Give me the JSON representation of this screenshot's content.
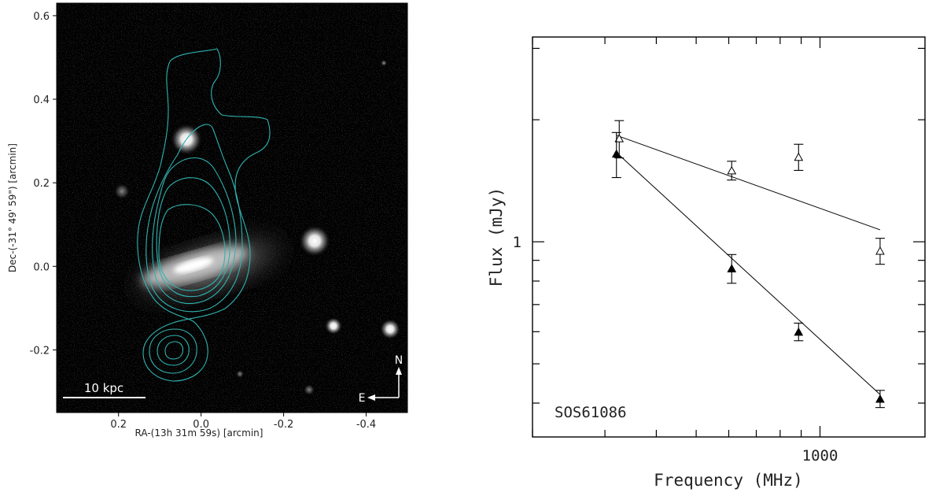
{
  "chart_data": [
    {
      "type": "image",
      "xlabel": "RA-(13h 31m 59s) [arcmin]",
      "ylabel": "Dec-(-31° 49' 59\") [arcmin]",
      "xlim": [
        0.35,
        -0.5
      ],
      "ylim": [
        -0.35,
        0.63
      ],
      "x_ticks": [
        {
          "value": 0.2,
          "label": "0.2"
        },
        {
          "value": 0.0,
          "label": "0.0"
        },
        {
          "value": -0.2,
          "label": "-0.2"
        },
        {
          "value": -0.4,
          "label": "-0.4"
        }
      ],
      "y_ticks": [
        {
          "value": 0.6,
          "label": "0.6"
        },
        {
          "value": 0.4,
          "label": "0.4"
        },
        {
          "value": 0.2,
          "label": "0.2"
        },
        {
          "value": 0.0,
          "label": "0.0"
        },
        {
          "value": -0.2,
          "label": "-0.2"
        }
      ],
      "scale_bar_label": "10 kpc",
      "compass": {
        "north": "N",
        "east": "E"
      },
      "contour_color": "#2fb3b0",
      "background_color": "#000000"
    },
    {
      "type": "scatter",
      "title": "SOS61086",
      "xlabel": "Frequency (MHz)",
      "ylabel": "Flux (mJy)",
      "x_scale": "log",
      "y_scale": "log",
      "xlim": [
        200,
        1800
      ],
      "ylim": [
        0.33,
        3.2
      ],
      "x_tick_labels": [
        {
          "value": 1000,
          "label": "1000"
        }
      ],
      "y_tick_labels": [
        {
          "value": 1,
          "label": "1"
        }
      ],
      "x_major_ticks": [
        200,
        300,
        400,
        500,
        600,
        700,
        800,
        900,
        1000
      ],
      "y_minor_ticks": [
        0.4,
        0.5,
        0.6,
        0.7,
        0.8,
        0.9,
        2,
        3
      ],
      "series": [
        {
          "marker": "open-triangle",
          "points": [
            {
              "x": 325,
              "y": 1.8,
              "err": 0.19
            },
            {
              "x": 610,
              "y": 1.5,
              "err": 0.08
            },
            {
              "x": 887,
              "y": 1.62,
              "err": 0.12
            },
            {
              "x": 1400,
              "y": 0.95,
              "err": 0.07
            }
          ],
          "fit": [
            {
              "x": 320,
              "y": 1.83
            },
            {
              "x": 1400,
              "y": 1.07
            }
          ]
        },
        {
          "marker": "filled-triangle",
          "points": [
            {
              "x": 320,
              "y": 1.65,
              "err": 0.21
            },
            {
              "x": 610,
              "y": 0.86,
              "err": 0.07
            },
            {
              "x": 887,
              "y": 0.6,
              "err": 0.03
            },
            {
              "x": 1400,
              "y": 0.41,
              "err": 0.02
            }
          ],
          "fit": [
            {
              "x": 320,
              "y": 1.66
            },
            {
              "x": 1400,
              "y": 0.42
            }
          ]
        }
      ]
    }
  ]
}
